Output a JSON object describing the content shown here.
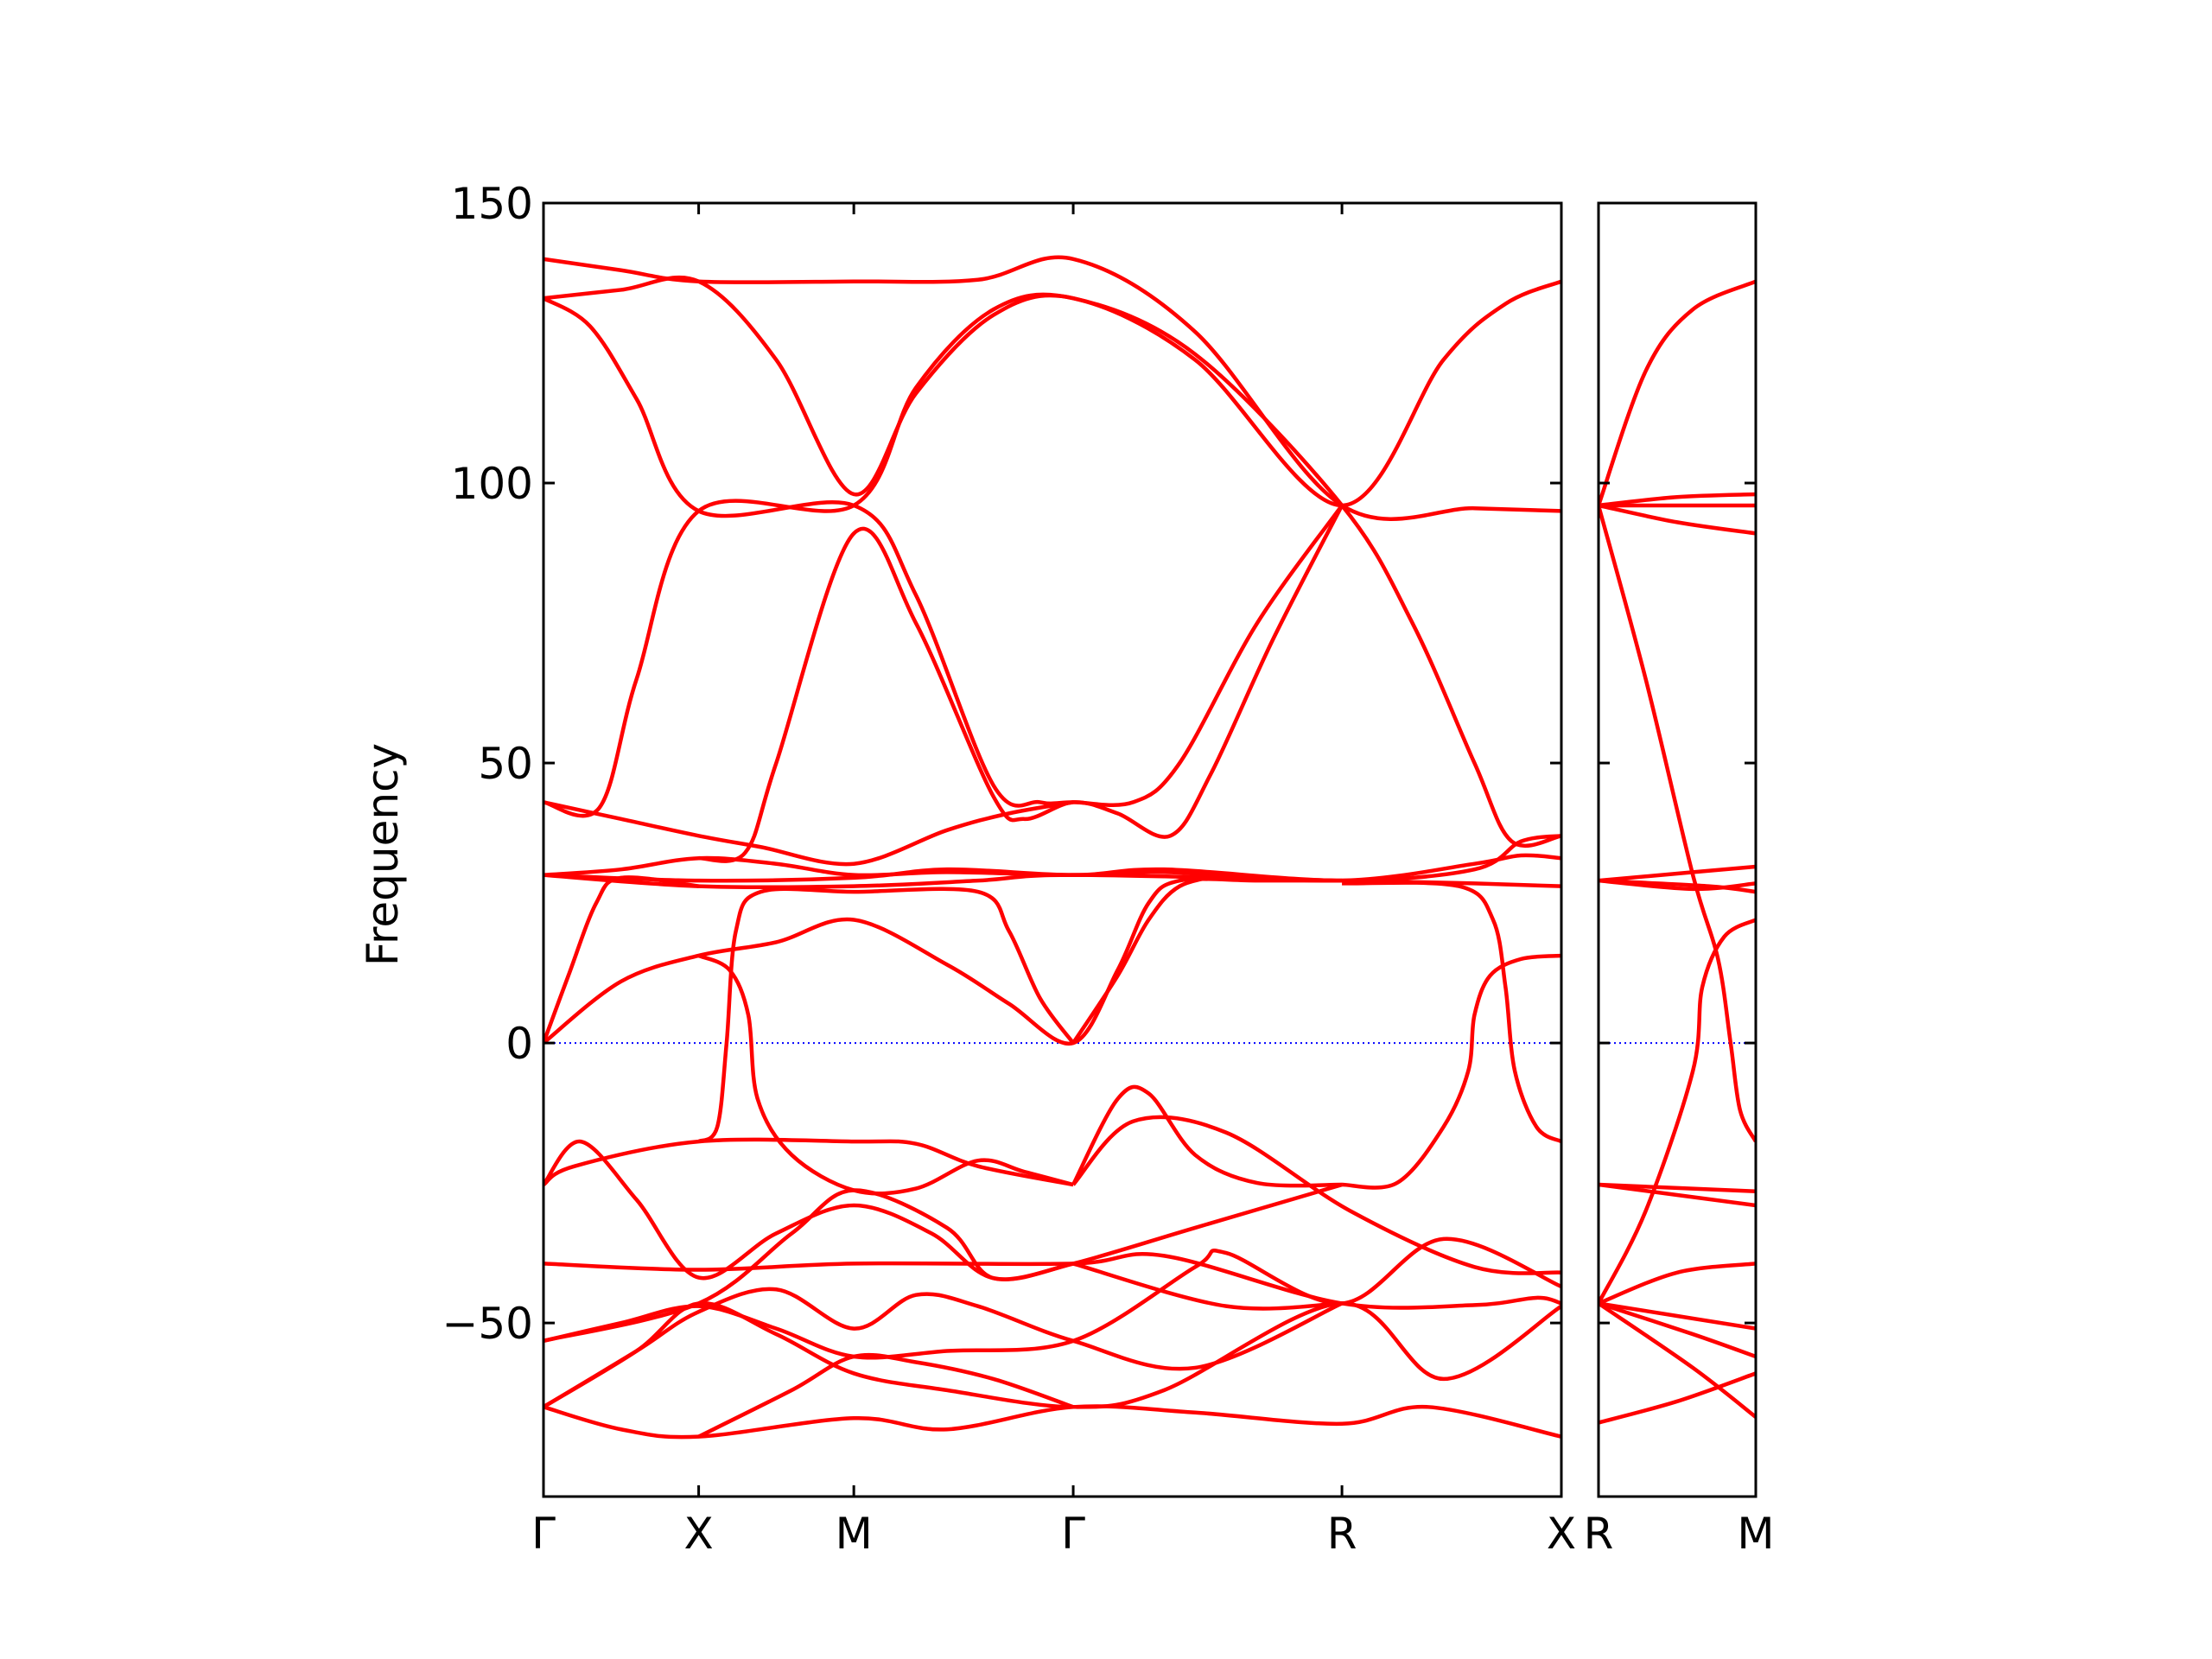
{
  "chart_data": [
    {
      "type": "line",
      "ylabel": "Frequency",
      "color": "#ff0000",
      "reference_line": {
        "value": 0,
        "color": "#0000ff",
        "style": "dotted"
      },
      "xlim": [
        0,
        3.28
      ],
      "ylim": [
        -81,
        150
      ],
      "xticks": [
        {
          "value": 0,
          "label": "Γ"
        },
        {
          "value": 0.5,
          "label": "X"
        },
        {
          "value": 1.0,
          "label": "M"
        },
        {
          "value": 1.707,
          "label": "Γ"
        },
        {
          "value": 2.573,
          "label": "R"
        },
        {
          "value": 3.28,
          "label": "X"
        }
      ],
      "yticks": [
        {
          "value": -50,
          "label": "−50"
        },
        0,
        50,
        100,
        150
      ],
      "ytick_labels": true,
      "series": [
        {
          "x": [
            0,
            0.25,
            0.5,
            1.0,
            1.4,
            1.707,
            2.1,
            2.573,
            3.0,
            3.28
          ],
          "values": [
            140,
            138,
            136,
            136,
            136.3,
            140,
            127,
            96,
            95.5,
            95
          ]
        },
        {
          "x": [
            0,
            0.25,
            0.5,
            0.75,
            1.0,
            1.2,
            1.45,
            1.707,
            2.1,
            2.573,
            2.9,
            3.1,
            3.28
          ],
          "values": [
            133,
            134.5,
            136,
            122,
            98,
            116,
            130,
            133,
            122,
            96,
            122,
            132,
            136
          ]
        },
        {
          "x": [
            0,
            0.15,
            0.3,
            0.5,
            1.0,
            1.2,
            1.45,
            1.6,
            1.707,
            1.9,
            2.05,
            2.3,
            2.573
          ],
          "values": [
            133,
            128,
            115,
            95,
            96,
            80,
            46,
            43,
            43,
            43,
            50,
            75,
            96
          ]
        },
        {
          "x": [
            0,
            0.18,
            0.3,
            0.5,
            1.0,
            1.2,
            1.45,
            1.707,
            2.1,
            2.573,
            2.8,
            3.0,
            3.12,
            3.28
          ],
          "values": [
            43,
            42,
            65,
            95,
            96,
            117,
            131,
            133,
            123,
            96,
            75,
            50,
            36,
            37
          ]
        },
        {
          "x": [
            0.5,
            0.65,
            0.75,
            1.0,
            1.2,
            1.45,
            1.55,
            1.707,
            1.85,
            2.02,
            2.15,
            2.35,
            2.573
          ],
          "values": [
            33,
            34,
            50,
            91,
            75,
            44,
            40,
            43,
            41,
            37,
            48,
            72,
            96
          ]
        },
        {
          "x": [
            0,
            0.25,
            0.5,
            0.7,
            1.0,
            1.3,
            1.5,
            1.707
          ],
          "values": [
            43,
            40,
            37,
            35,
            32,
            38,
            41,
            43
          ]
        },
        {
          "x": [
            0,
            0.25,
            0.5,
            0.75,
            1.0,
            1.3,
            1.707,
            2.0,
            2.573,
            3.0,
            3.15,
            3.28
          ],
          "values": [
            30,
            31,
            33,
            32,
            30,
            30.5,
            30,
            30.5,
            29,
            32,
            33.5,
            33
          ]
        },
        {
          "x": [
            0,
            0.5,
            1.0,
            1.4,
            1.707,
            2.573,
            3.0,
            3.28
          ],
          "values": [
            30,
            28,
            28,
            29,
            30,
            29,
            28.5,
            28
          ]
        },
        {
          "x": [
            0,
            0.5,
            1.0,
            1.3,
            1.707,
            2.0,
            2.573,
            3.0,
            3.15,
            3.28
          ],
          "values": [
            30,
            29,
            29.5,
            31,
            30,
            31,
            29,
            31,
            36,
            37
          ]
        },
        {
          "x": [
            0,
            0.08,
            0.17,
            0.25,
            0.5
          ],
          "values": [
            0,
            12,
            25,
            29.5,
            28
          ]
        },
        {
          "x": [
            0,
            0.25,
            0.5,
            0.75,
            1.0,
            1.3,
            1.5,
            1.707,
            1.85,
            1.95,
            2.05,
            2.3,
            2.573
          ],
          "values": [
            0,
            11,
            15.6,
            18,
            22,
            14,
            7,
            0,
            13,
            25,
            29,
            29,
            29
          ]
        },
        {
          "x": [
            0.5,
            0.6,
            0.66,
            0.69,
            0.8,
            1.0,
            1.2,
            1.4,
            1.55,
            1.707
          ],
          "values": [
            15.6,
            13,
            5,
            -10,
            -20,
            -26.3,
            -26,
            -21,
            -23,
            -25.3
          ]
        },
        {
          "x": [
            0.5,
            0.56,
            0.59,
            0.62,
            0.7,
            1.0,
            1.4,
            1.5,
            1.6,
            1.707
          ],
          "values": [
            -17.6,
            -15,
            0,
            20,
            27,
            27,
            27,
            20,
            8,
            0
          ]
        },
        {
          "x": [
            1.707,
            1.85,
            1.95,
            2.05,
            2.2
          ],
          "values": [
            0,
            12,
            22,
            28,
            30
          ]
        },
        {
          "x": [
            2.573,
            2.95,
            3.06,
            3.1,
            3.13,
            3.2,
            3.28
          ],
          "values": [
            28.5,
            28,
            22,
            10,
            -5,
            -15,
            -17.6
          ]
        },
        {
          "x": [
            2.573,
            2.75,
            2.9,
            2.98,
            3.0,
            3.05,
            3.15,
            3.28
          ],
          "values": [
            -25.3,
            -25,
            -15,
            -5,
            5,
            12,
            15,
            15.6
          ]
        },
        {
          "x": [
            0,
            0.1,
            0.5,
            1.0,
            1.2,
            1.4,
            1.707
          ],
          "values": [
            -25.3,
            -22,
            -17.6,
            -17.6,
            -18,
            -22,
            -25.3
          ]
        },
        {
          "x": [
            0,
            0.12,
            0.3,
            0.5,
            0.75,
            1.0,
            1.25,
            1.45,
            1.707,
            2.1,
            2.573
          ],
          "values": [
            -25.3,
            -17.6,
            -28,
            -41.9,
            -34,
            -29,
            -34,
            -42,
            -39.4,
            -33,
            -25.3
          ]
        },
        {
          "x": [
            0,
            0.5,
            1.0,
            1.707,
            2.0,
            2.573,
            3.0,
            3.2,
            3.28
          ],
          "values": [
            -39.4,
            -40.5,
            -39.4,
            -39.4,
            -38,
            -46.5,
            -46.8,
            -45.5,
            -46.5
          ]
        },
        {
          "x": [
            0,
            0.5,
            0.8,
            1.0,
            1.3,
            1.45,
            1.707
          ],
          "values": [
            -53.2,
            -46.5,
            -34,
            -26.3,
            -33,
            -42,
            -39.4
          ]
        },
        {
          "x": [
            0,
            0.25,
            0.5,
            0.75,
            1.0,
            1.3,
            1.707,
            2.1,
            2.2,
            2.573,
            2.9,
            3.28
          ],
          "values": [
            -53.2,
            -50,
            -47,
            -51,
            -56,
            -55,
            -53.2,
            -40,
            -37.5,
            -46.5,
            -35,
            -43.5
          ]
        },
        {
          "x": [
            0,
            0.3,
            0.5,
            0.75,
            1.0,
            1.3,
            1.707,
            2.0,
            2.573,
            2.9,
            3.28
          ],
          "values": [
            -65,
            -55,
            -46.5,
            -52,
            -59,
            -62,
            -65,
            -62,
            -46.5,
            -60,
            -47
          ]
        },
        {
          "x": [
            0,
            0.25,
            0.5,
            1.0,
            1.3,
            1.707,
            2.1,
            2.573,
            2.85,
            3.28
          ],
          "values": [
            -65,
            -69,
            -70.3,
            -67,
            -69,
            -65,
            -66,
            -68,
            -65,
            -70.3
          ]
        },
        {
          "x": [
            0,
            0.3,
            0.5,
            0.75,
            1.0,
            1.2,
            1.4,
            1.707,
            2.1,
            2.573
          ],
          "values": [
            -65,
            -55,
            -48,
            -44,
            -51,
            -45,
            -47,
            -53.2,
            -58,
            -46.5
          ]
        },
        {
          "x": [
            0.5,
            0.8,
            1.0,
            1.2,
            1.45,
            1.707
          ],
          "values": [
            -70.3,
            -62,
            -56,
            -57,
            -60,
            -65
          ]
        },
        {
          "x": [
            1.707,
            1.85,
            1.95,
            2.1,
            2.3,
            2.573
          ],
          "values": [
            -25.3,
            -10,
            -9,
            -20,
            -25,
            -25.3
          ]
        },
        {
          "x": [
            1.707,
            1.9,
            2.2,
            2.6,
            3.0,
            3.28
          ],
          "values": [
            -25.3,
            -14,
            -16,
            -30,
            -40,
            -41
          ]
        },
        {
          "x": [
            1.707,
            2.2,
            2.573
          ],
          "values": [
            -39.4,
            -47,
            -46.5
          ]
        }
      ]
    },
    {
      "type": "line",
      "color": "#ff0000",
      "reference_line": {
        "value": 0,
        "color": "#0000ff",
        "style": "dotted"
      },
      "xlim": [
        0,
        0.5
      ],
      "ylim": [
        -81,
        150
      ],
      "xticks": [
        {
          "value": 0,
          "label": "R"
        },
        {
          "value": 0.5,
          "label": "M"
        }
      ],
      "yticks": [
        -50,
        0,
        50,
        100,
        150
      ],
      "ytick_labels": false,
      "series": [
        {
          "x": [
            0,
            0.15,
            0.3,
            0.5
          ],
          "values": [
            96,
            120,
            131,
            136
          ]
        },
        {
          "x": [
            0,
            0.25,
            0.5
          ],
          "values": [
            96,
            97.5,
            98
          ]
        },
        {
          "x": [
            0,
            0.5
          ],
          "values": [
            96,
            96
          ]
        },
        {
          "x": [
            0,
            0.25,
            0.5
          ],
          "values": [
            96,
            93,
            91
          ]
        },
        {
          "x": [
            0,
            0.15,
            0.3,
            0.38,
            0.42,
            0.45,
            0.5
          ],
          "values": [
            96,
            65,
            30,
            15,
            0,
            -12,
            -17.6
          ]
        },
        {
          "x": [
            0,
            0.15,
            0.3,
            0.33,
            0.4,
            0.5
          ],
          "values": [
            -46.5,
            -30,
            -5,
            10,
            19,
            22
          ]
        },
        {
          "x": [
            0,
            0.35,
            0.5
          ],
          "values": [
            29,
            28,
            27
          ]
        },
        {
          "x": [
            0,
            0.3,
            0.5
          ],
          "values": [
            29,
            30.5,
            31.5
          ]
        },
        {
          "x": [
            0,
            0.3,
            0.5
          ],
          "values": [
            29,
            27.5,
            28.5
          ]
        },
        {
          "x": [
            0,
            0.5
          ],
          "values": [
            -25.3,
            -26.5
          ]
        },
        {
          "x": [
            0,
            0.5
          ],
          "values": [
            -25.3,
            -29
          ]
        },
        {
          "x": [
            0,
            0.25,
            0.5
          ],
          "values": [
            -46.5,
            -41,
            -39.4
          ]
        },
        {
          "x": [
            0,
            0.5
          ],
          "values": [
            -46.5,
            -51
          ]
        },
        {
          "x": [
            0,
            0.3,
            0.5
          ],
          "values": [
            -46.5,
            -52,
            -56
          ]
        },
        {
          "x": [
            0,
            0.3,
            0.5
          ],
          "values": [
            -46.5,
            -58,
            -66.8
          ]
        },
        {
          "x": [
            0,
            0.25,
            0.5
          ],
          "values": [
            -67.8,
            -64,
            -59
          ]
        }
      ]
    }
  ]
}
